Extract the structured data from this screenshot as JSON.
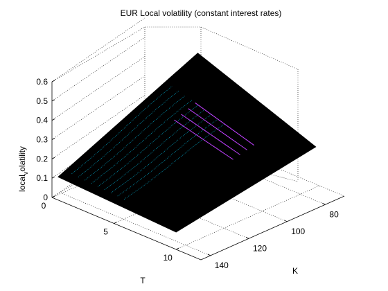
{
  "chart_data": {
    "type": "surface",
    "title": "EUR Local volatility (constant interest rates)",
    "xlabel": "T",
    "ylabel": "K",
    "zlabel": "local_volatility",
    "zlabel_display": {
      "prefix": "local",
      "sub": "v",
      "suffix": "olatility"
    },
    "x_ticks": [
      "0",
      "5",
      "10"
    ],
    "y_ticks": [
      "80",
      "100",
      "120",
      "140"
    ],
    "z_ticks": [
      "0",
      "0.1",
      "0.2",
      "0.3",
      "0.4",
      "0.5",
      "0.6"
    ],
    "xlim": [
      0,
      12
    ],
    "ylim": [
      70,
      145
    ],
    "zlim": [
      0,
      0.6
    ],
    "grid": true,
    "colors": {
      "surface_edge": "#000000",
      "contour_low": "#00a0c0",
      "contour_high": "#c040ff"
    },
    "surface_corners": [
      {
        "T": 0.5,
        "K": 145,
        "vol": 0.12
      },
      {
        "T": 10,
        "K": 145,
        "vol": 0.09
      },
      {
        "T": 10,
        "K": 72,
        "vol": 0.21
      },
      {
        "T": 0.5,
        "K": 72,
        "vol": 0.44
      }
    ]
  }
}
